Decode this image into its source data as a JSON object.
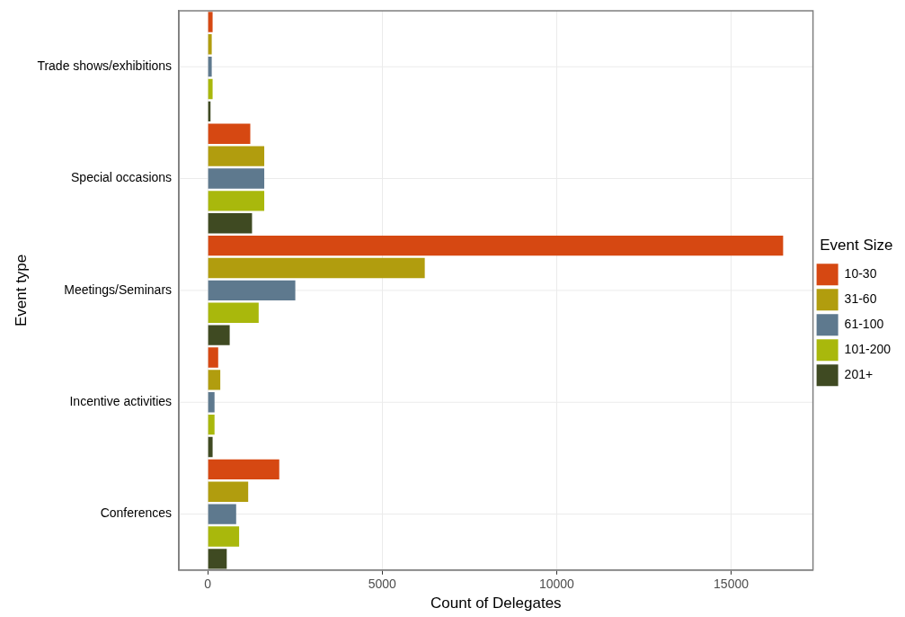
{
  "chart_data": {
    "type": "bar",
    "orientation": "horizontal",
    "xlabel": "Count of Delegates",
    "ylabel": "Event type",
    "legend_title": "Event Size",
    "legend": "right",
    "grid": true,
    "categories": [
      "Trade shows/exhibitions",
      "Special occasions",
      "Meetings/Seminars",
      "Incentive activities",
      "Conferences"
    ],
    "xlim": [
      -826,
      17346
    ],
    "xticks": [
      0,
      5000,
      10000,
      15000
    ],
    "series": [
      {
        "name": "10-30",
        "color": "#d64812",
        "values": [
          140,
          1220,
          16490,
          300,
          2050
        ]
      },
      {
        "name": "31-60",
        "color": "#b19d0e",
        "values": [
          115,
          1620,
          6220,
          360,
          1160
        ]
      },
      {
        "name": "61-100",
        "color": "#5e798e",
        "values": [
          115,
          1620,
          2510,
          195,
          815
        ]
      },
      {
        "name": "101-200",
        "color": "#a9b80c",
        "values": [
          140,
          1620,
          1460,
          195,
          900
        ]
      },
      {
        "name": "201+",
        "color": "#3f4a22",
        "values": [
          80,
          1270,
          630,
          140,
          545
        ]
      }
    ]
  }
}
